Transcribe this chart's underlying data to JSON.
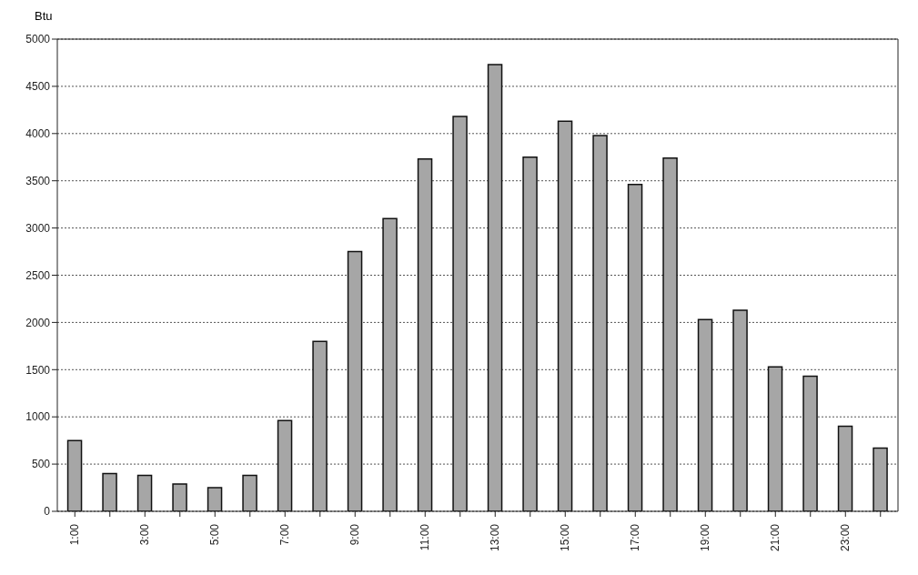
{
  "chart_data": {
    "type": "bar",
    "ylabel": "Btu",
    "categories": [
      "1:00",
      null,
      "3:00",
      null,
      "5:00",
      null,
      "7:00",
      null,
      "9:00",
      null,
      "11:00",
      null,
      "13:00",
      null,
      "15:00",
      null,
      "17:00",
      null,
      "19:00",
      null,
      "21:00",
      null,
      "23:00",
      null
    ],
    "values": [
      750,
      400,
      380,
      290,
      250,
      380,
      960,
      1800,
      2750,
      3100,
      3730,
      4180,
      4730,
      3750,
      4130,
      3980,
      3460,
      3740,
      2030,
      2130,
      1530,
      1430,
      900,
      670
    ],
    "color": "#a6a6a6",
    "ylim": [
      0,
      5000
    ],
    "yticks": [
      0,
      500,
      1000,
      1500,
      2000,
      2500,
      3000,
      3500,
      4000,
      4500,
      5000
    ],
    "grid": "y",
    "legend": false
  }
}
